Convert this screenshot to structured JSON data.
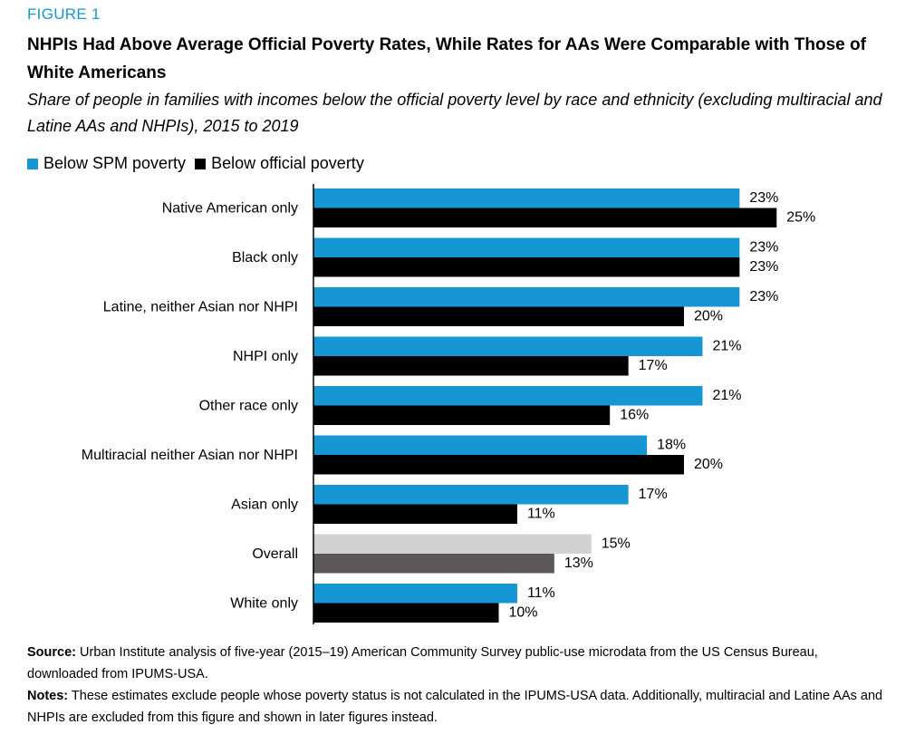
{
  "figure_label": "FIGURE 1",
  "title": "NHPIs Had Above Average Official Poverty Rates, While Rates for AAs Were Comparable with Those of White Americans",
  "subtitle": "Share of people in families with incomes below the official poverty level by race and ethnicity (excluding multiracial and Latine AAs and NHPIs), 2015 to 2019",
  "colors": {
    "spm": "#1696d2",
    "official": "#000000",
    "overall_spm": "#d2d2d2",
    "overall_official": "#5c5859"
  },
  "chart_data": {
    "type": "bar",
    "orientation": "horizontal",
    "categories": [
      "Native American only",
      "Black only",
      "Latine, neither Asian nor NHPI",
      "NHPI only",
      "Other race only",
      "Multiracial neither Asian nor NHPI",
      "Asian only",
      "Overall",
      "White only"
    ],
    "series": [
      {
        "name": "Below SPM poverty",
        "values": [
          23,
          23,
          23,
          21,
          21,
          18,
          17,
          15,
          11
        ],
        "labels": [
          "23%",
          "23%",
          "23%",
          "21%",
          "21%",
          "18%",
          "17%",
          "15%",
          "11%"
        ]
      },
      {
        "name": "Below official poverty",
        "values": [
          25,
          23,
          20,
          17,
          16,
          20,
          11,
          13,
          10
        ],
        "labels": [
          "25%",
          "23%",
          "20%",
          "17%",
          "16%",
          "20%",
          "11%",
          "13%",
          "10%"
        ]
      }
    ],
    "highlight_category": "Overall",
    "xlim": [
      0,
      30
    ],
    "legend_position": "top-left",
    "grid": false
  },
  "footer": {
    "source_label": "Source:",
    "source_text": "Urban Institute analysis of five-year (2015–19) American Community Survey public-use microdata from the US Census Bureau, downloaded from IPUMS-USA.",
    "notes_label": "Notes:",
    "notes_text": "These estimates exclude people whose poverty status is not calculated in the IPUMS-USA data. Additionally, multiracial and Latine AAs and NHPIs are excluded from this figure and shown in later figures instead."
  }
}
